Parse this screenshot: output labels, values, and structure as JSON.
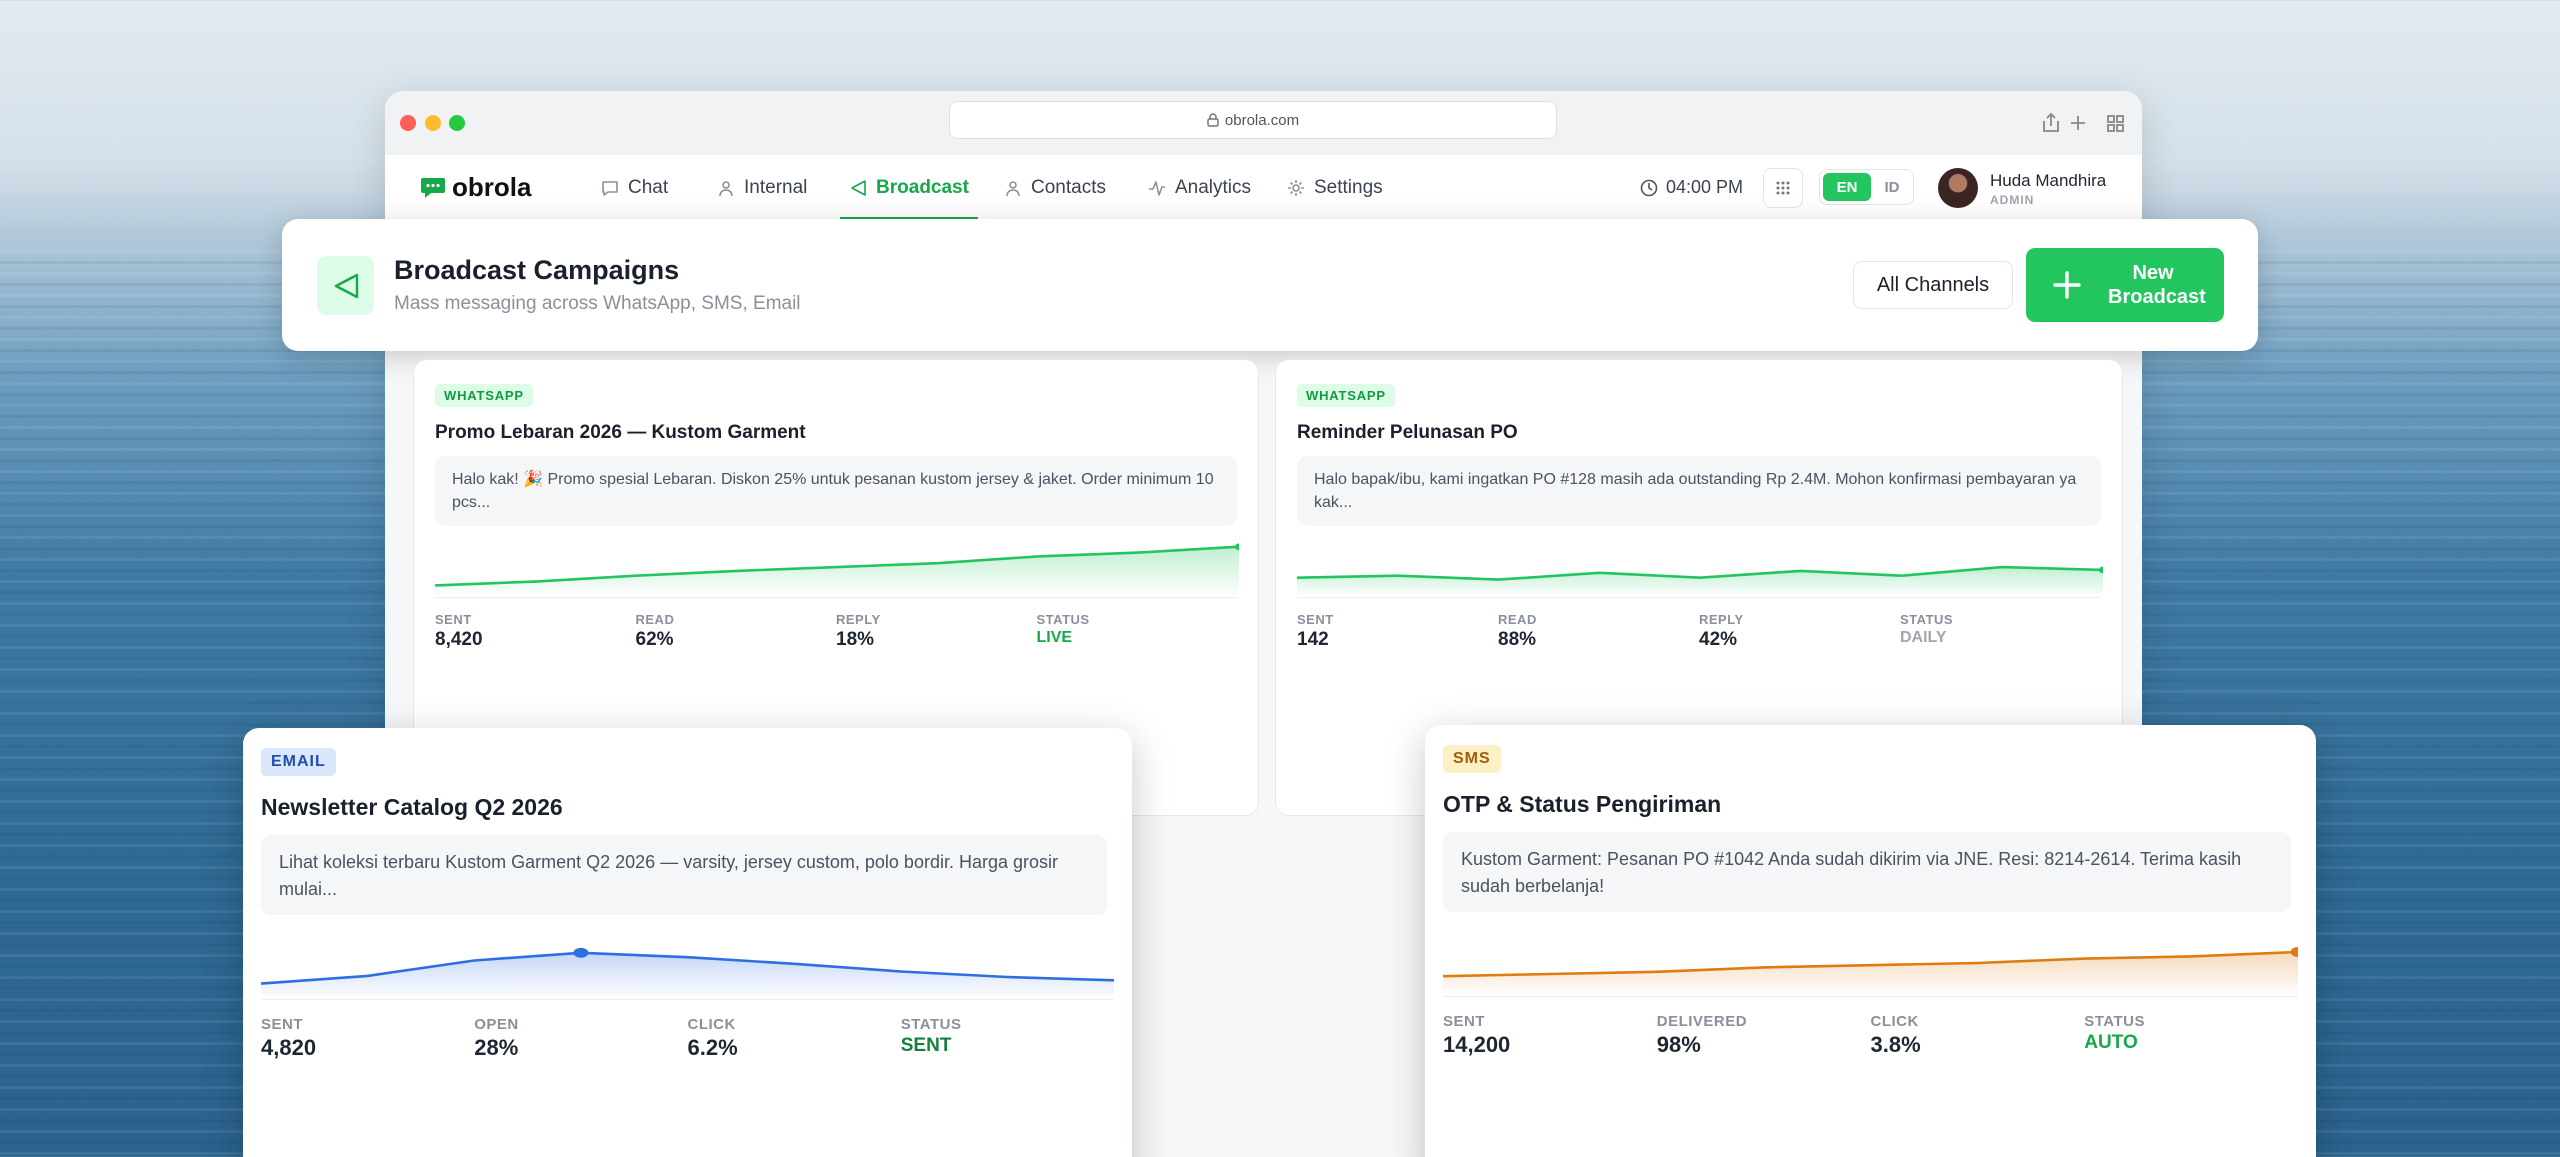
{
  "browser": {
    "url": "obrola.com"
  },
  "nav": {
    "logo": "obrola",
    "items": [
      "Chat",
      "Internal",
      "Broadcast",
      "Contacts",
      "Analytics",
      "Settings"
    ],
    "time": "04:00 PM",
    "languages": [
      "EN",
      "ID"
    ],
    "user": {
      "name": "Huda Mandhira",
      "role": "ADMIN"
    }
  },
  "header": {
    "title": "Broadcast Campaigns",
    "subtitle": "Mass messaging across WhatsApp, SMS, Email",
    "filter": "All Channels",
    "button": "New Broadcast"
  },
  "campaigns": [
    {
      "channel": "WHATSAPP",
      "title": "Promo Lebaran 2026 — Kustom Garment",
      "message": "Halo kak! 🎉 Promo spesial Lebaran. Diskon 25% untuk pesanan kustom jersey & jaket. Order minimum 10 pcs...",
      "stats": [
        {
          "label": "SENT",
          "value": "8,420"
        },
        {
          "label": "READ",
          "value": "62%"
        },
        {
          "label": "REPLY",
          "value": "18%"
        },
        {
          "label": "STATUS",
          "value": "LIVE"
        }
      ]
    },
    {
      "channel": "WHATSAPP",
      "title": "Reminder Pelunasan PO",
      "message": "Halo bapak/ibu, kami ingatkan PO #128 masih ada outstanding Rp 2.4M. Mohon konfirmasi pembayaran ya kak...",
      "stats": [
        {
          "label": "SENT",
          "value": "142"
        },
        {
          "label": "READ",
          "value": "88%"
        },
        {
          "label": "REPLY",
          "value": "42%"
        },
        {
          "label": "STATUS",
          "value": "DAILY"
        }
      ]
    },
    {
      "channel": "EMAIL",
      "title": "Newsletter Catalog Q2 2026",
      "message": "Lihat koleksi terbaru Kustom Garment Q2 2026 — varsity, jersey custom, polo bordir. Harga grosir mulai...",
      "stats": [
        {
          "label": "SENT",
          "value": "4,820"
        },
        {
          "label": "OPEN",
          "value": "28%"
        },
        {
          "label": "CLICK",
          "value": "6.2%"
        },
        {
          "label": "STATUS",
          "value": "SENT"
        }
      ]
    },
    {
      "channel": "SMS",
      "title": "OTP & Status Pengiriman",
      "message": "Kustom Garment: Pesanan PO #1042 Anda sudah dikirim via JNE. Resi: 8214-2614. Terima kasih sudah berbelanja!",
      "stats": [
        {
          "label": "SENT",
          "value": "14,200"
        },
        {
          "label": "DELIVERED",
          "value": "98%"
        },
        {
          "label": "CLICK",
          "value": "3.8%"
        },
        {
          "label": "STATUS",
          "value": "AUTO"
        }
      ]
    }
  ]
}
